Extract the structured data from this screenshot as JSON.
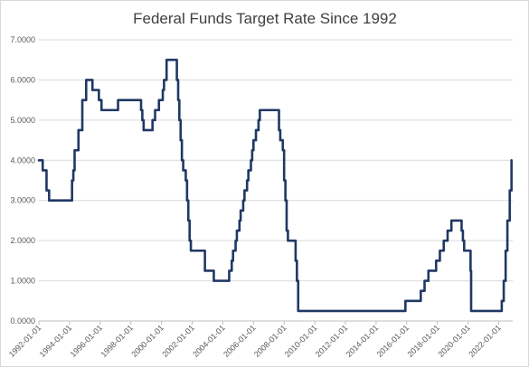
{
  "chart_data": {
    "type": "line",
    "title": "Federal Funds Target Rate Since 1992",
    "xlabel": "",
    "ylabel": "",
    "ylim": [
      0,
      7
    ],
    "xlim": [
      "1992-01-01",
      "2022-07-01"
    ],
    "grid": "horizontal",
    "legend": "none",
    "yticks": [
      "0.0000",
      "1.0000",
      "2.0000",
      "3.0000",
      "4.0000",
      "5.0000",
      "6.0000",
      "7.0000"
    ],
    "xticks": [
      "1992-01-01",
      "1994-01-01",
      "1996-01-01",
      "1998-01-01",
      "2000-01-01",
      "2002-01-01",
      "2004-01-01",
      "2006-01-01",
      "2008-01-01",
      "2010-01-01",
      "2012-01-01",
      "2014-01-01",
      "2016-01-01",
      "2018-01-01",
      "2020-01-01",
      "2022-01-01"
    ],
    "color": "#203864",
    "series": [
      {
        "points": [
          [
            "1992-01-01",
            4.0
          ],
          [
            "1992-04-01",
            3.75
          ],
          [
            "1992-07-01",
            3.25
          ],
          [
            "1992-09-01",
            3.0
          ],
          [
            "1994-02-01",
            3.0
          ],
          [
            "1994-03-01",
            3.5
          ],
          [
            "1994-04-01",
            3.75
          ],
          [
            "1994-05-01",
            4.25
          ],
          [
            "1994-08-01",
            4.75
          ],
          [
            "1994-11-01",
            5.5
          ],
          [
            "1995-02-01",
            6.0
          ],
          [
            "1995-07-01",
            5.75
          ],
          [
            "1995-12-01",
            5.5
          ],
          [
            "1996-02-01",
            5.25
          ],
          [
            "1997-03-01",
            5.5
          ],
          [
            "1998-09-01",
            5.25
          ],
          [
            "1998-10-01",
            5.0
          ],
          [
            "1998-11-01",
            4.75
          ],
          [
            "1999-06-01",
            5.0
          ],
          [
            "1999-08-01",
            5.25
          ],
          [
            "1999-11-01",
            5.5
          ],
          [
            "2000-02-01",
            5.75
          ],
          [
            "2000-03-01",
            6.0
          ],
          [
            "2000-05-01",
            6.5
          ],
          [
            "2001-01-01",
            6.0
          ],
          [
            "2001-02-01",
            5.5
          ],
          [
            "2001-03-01",
            5.0
          ],
          [
            "2001-04-01",
            4.5
          ],
          [
            "2001-05-01",
            4.0
          ],
          [
            "2001-06-01",
            3.75
          ],
          [
            "2001-08-01",
            3.5
          ],
          [
            "2001-09-01",
            3.0
          ],
          [
            "2001-10-01",
            2.5
          ],
          [
            "2001-11-01",
            2.0
          ],
          [
            "2001-12-01",
            1.75
          ],
          [
            "2002-11-01",
            1.25
          ],
          [
            "2003-06-01",
            1.0
          ],
          [
            "2004-06-01",
            1.25
          ],
          [
            "2004-08-01",
            1.5
          ],
          [
            "2004-09-01",
            1.75
          ],
          [
            "2004-11-01",
            2.0
          ],
          [
            "2004-12-01",
            2.25
          ],
          [
            "2005-02-01",
            2.5
          ],
          [
            "2005-03-01",
            2.75
          ],
          [
            "2005-05-01",
            3.0
          ],
          [
            "2005-06-01",
            3.25
          ],
          [
            "2005-08-01",
            3.5
          ],
          [
            "2005-09-01",
            3.75
          ],
          [
            "2005-11-01",
            4.0
          ],
          [
            "2005-12-01",
            4.25
          ],
          [
            "2006-01-01",
            4.5
          ],
          [
            "2006-03-01",
            4.75
          ],
          [
            "2006-05-01",
            5.0
          ],
          [
            "2006-06-01",
            5.25
          ],
          [
            "2007-09-01",
            4.75
          ],
          [
            "2007-10-01",
            4.5
          ],
          [
            "2007-12-01",
            4.25
          ],
          [
            "2008-01-01",
            3.5
          ],
          [
            "2008-02-01",
            3.0
          ],
          [
            "2008-03-01",
            2.25
          ],
          [
            "2008-04-01",
            2.0
          ],
          [
            "2008-10-01",
            1.5
          ],
          [
            "2008-11-01",
            1.0
          ],
          [
            "2008-12-01",
            0.25
          ],
          [
            "2015-12-01",
            0.5
          ],
          [
            "2016-12-01",
            0.75
          ],
          [
            "2017-03-01",
            1.0
          ],
          [
            "2017-06-01",
            1.25
          ],
          [
            "2017-12-01",
            1.5
          ],
          [
            "2018-03-01",
            1.75
          ],
          [
            "2018-06-01",
            2.0
          ],
          [
            "2018-09-01",
            2.25
          ],
          [
            "2018-12-01",
            2.5
          ],
          [
            "2019-08-01",
            2.25
          ],
          [
            "2019-09-01",
            2.0
          ],
          [
            "2019-10-01",
            1.75
          ],
          [
            "2020-03-01",
            1.25
          ],
          [
            "2020-03-15",
            0.25
          ],
          [
            "2022-03-15",
            0.5
          ],
          [
            "2022-05-01",
            1.0
          ],
          [
            "2022-06-15",
            1.75
          ],
          [
            "2022-07-27",
            2.5
          ],
          [
            "2022-09-21",
            3.25
          ],
          [
            "2022-11-02",
            4.0
          ]
        ]
      }
    ]
  }
}
